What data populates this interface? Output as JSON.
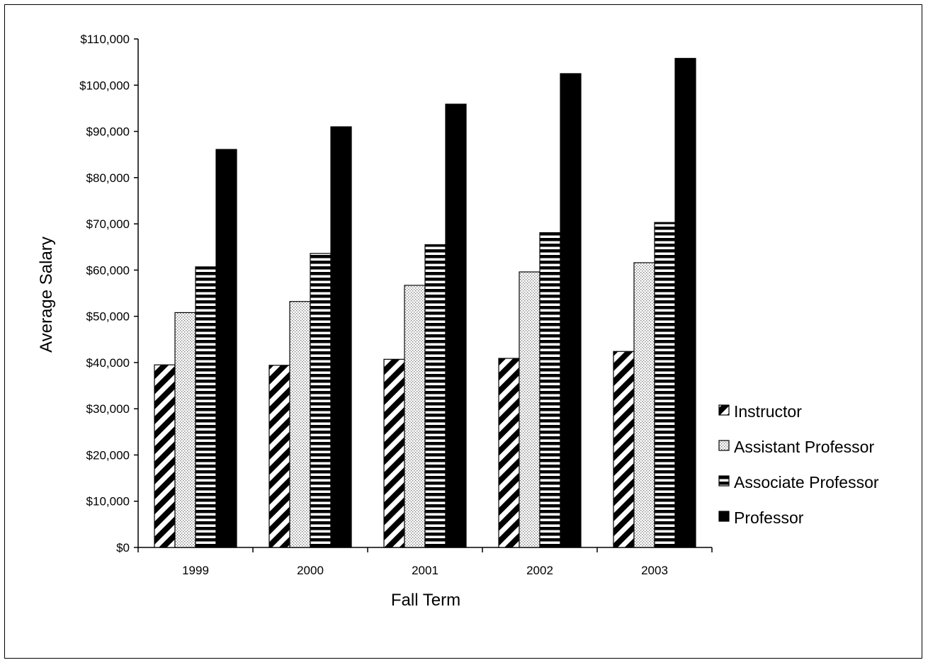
{
  "chart_data": {
    "type": "bar",
    "title": "",
    "xlabel": "Fall Term",
    "ylabel": "Average Salary",
    "categories": [
      "1999",
      "2000",
      "2001",
      "2002",
      "2003"
    ],
    "ylim": [
      0,
      110000
    ],
    "ytick_step": 10000,
    "ytick_labels": [
      "$0",
      "$10,000",
      "$20,000",
      "$30,000",
      "$40,000",
      "$50,000",
      "$60,000",
      "$70,000",
      "$80,000",
      "$90,000",
      "$100,000",
      "$110,000"
    ],
    "grid": false,
    "legend_position": "right",
    "series": [
      {
        "name": "Instructor",
        "pattern": "diagonal-stripes",
        "values": [
          39500,
          39400,
          40700,
          40900,
          42400
        ]
      },
      {
        "name": "Assistant Professor",
        "pattern": "dotted",
        "values": [
          50800,
          53200,
          56700,
          59600,
          61600
        ]
      },
      {
        "name": "Associate Professor",
        "pattern": "horizontal-stripes",
        "values": [
          60700,
          63600,
          65500,
          68100,
          70300
        ]
      },
      {
        "name": "Professor",
        "pattern": "solid",
        "values": [
          86100,
          91000,
          95900,
          102500,
          105800
        ]
      }
    ]
  }
}
